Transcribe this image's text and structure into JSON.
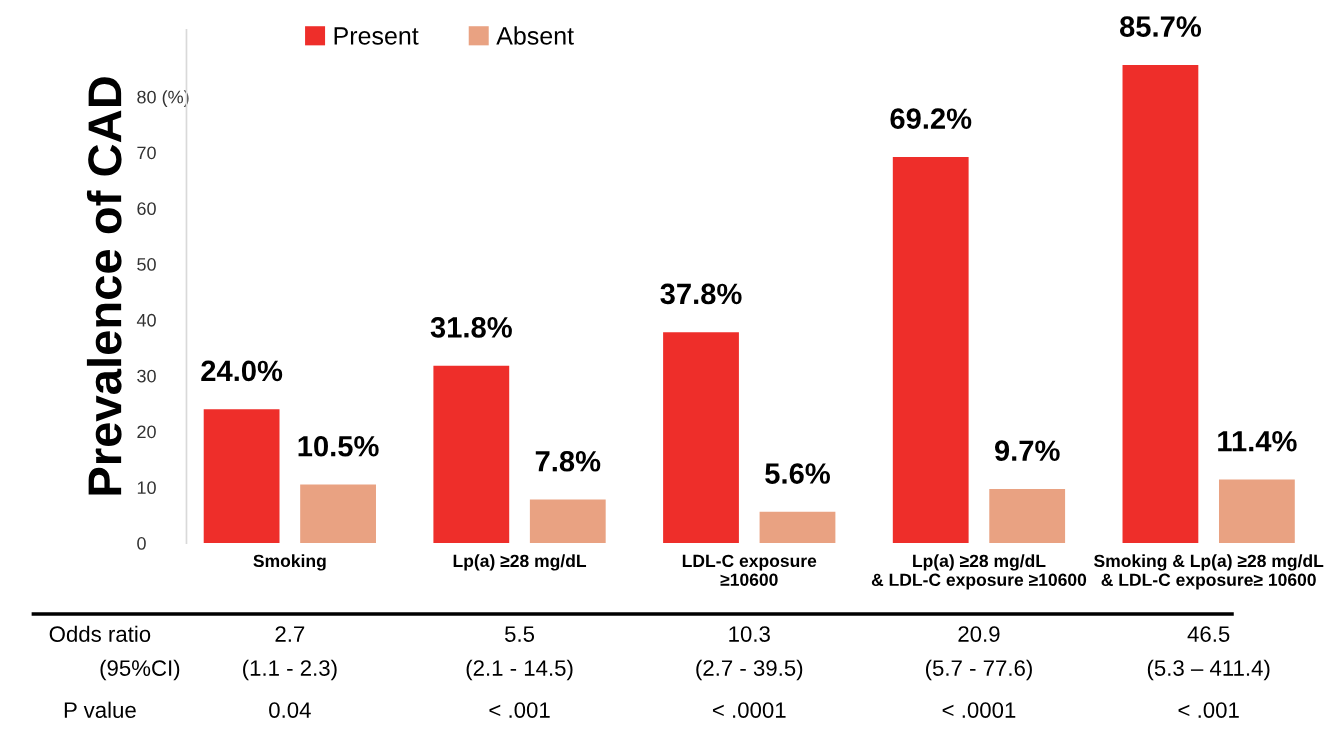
{
  "chart_data": {
    "type": "bar",
    "ylabel": "Prevalence of CAD",
    "categories": [
      "Smoking",
      "Lp(a) ≥28 mg/dL",
      "LDL-C exposure\n≥10600",
      "Lp(a) ≥28 mg/dL\n& LDL-C exposure ≥10600",
      "Smoking & Lp(a) ≥28 mg/dL\n& LDL-C exposure≥ 10600"
    ],
    "series": [
      {
        "name": "Present",
        "color": "#ee2e2a",
        "values": [
          24.0,
          31.8,
          37.8,
          69.2,
          85.7
        ],
        "value_labels": [
          "24.0%",
          "31.8%",
          "37.8%",
          "69.2%",
          "85.7%"
        ]
      },
      {
        "name": "Absent",
        "color": "#e9a282",
        "values": [
          10.5,
          7.8,
          5.6,
          9.7,
          11.4
        ],
        "value_labels": [
          "10.5%",
          "7.8%",
          "5.6%",
          "9.7%",
          "11.4%"
        ]
      }
    ],
    "ylim": [
      0,
      92
    ],
    "yticks": [
      0,
      10,
      20,
      30,
      40,
      50,
      60,
      70,
      {
        "value": 80,
        "label": "80 (%)"
      }
    ],
    "grid": false,
    "legend": "top",
    "annotations": [
      "Odds ratio",
      "2.7",
      "5.5",
      "10.3",
      "20.9",
      "46.5",
      "(95%CI)",
      "(1.1 - 2.3)",
      "(2.1 - 14.5)",
      "(2.7 - 39.5)",
      "(5.7 - 77.6)",
      "(5.3 – 411.4)",
      "P value",
      "0.04",
      "< .001",
      "< .0001",
      "< .0001",
      "< .001"
    ]
  }
}
